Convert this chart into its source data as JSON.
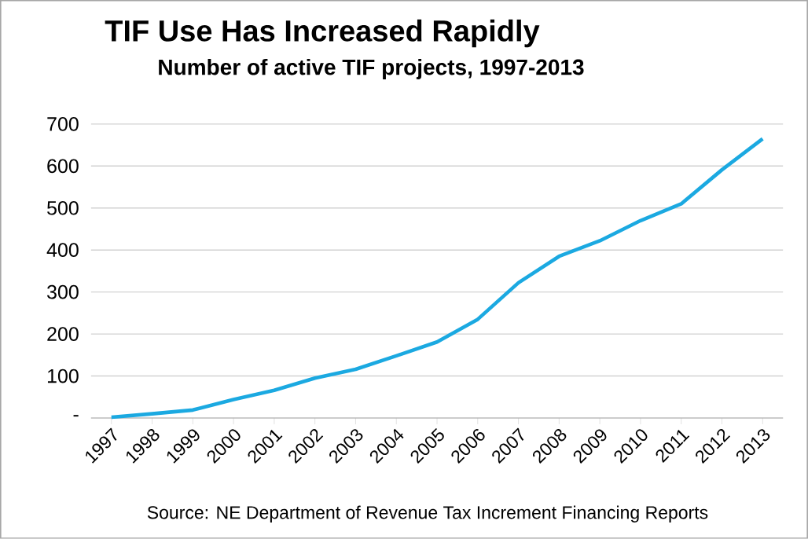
{
  "chart_data": {
    "type": "line",
    "title": "TIF Use Has Increased Rapidly",
    "subtitle": "Number of active TIF projects, 1997-2013",
    "categories": [
      "1997",
      "1998",
      "1999",
      "2000",
      "2001",
      "2002",
      "2003",
      "2004",
      "2005",
      "2006",
      "2007",
      "2008",
      "2009",
      "2010",
      "2011",
      "2012",
      "2013"
    ],
    "values": [
      2,
      10,
      19,
      44,
      66,
      95,
      116,
      148,
      181,
      235,
      322,
      385,
      422,
      470,
      510,
      591,
      665
    ],
    "color": "#1ba9e1",
    "ylim": [
      0,
      700
    ],
    "yticks": [
      {
        "value": 0,
        "label": "-"
      },
      100,
      200,
      300,
      400,
      500,
      600,
      700
    ],
    "grid": "y",
    "marker": "none",
    "line_style": "solid",
    "annotations": [
      "Source:  NE Department of Revenue Tax Increment Financing Reports"
    ]
  }
}
